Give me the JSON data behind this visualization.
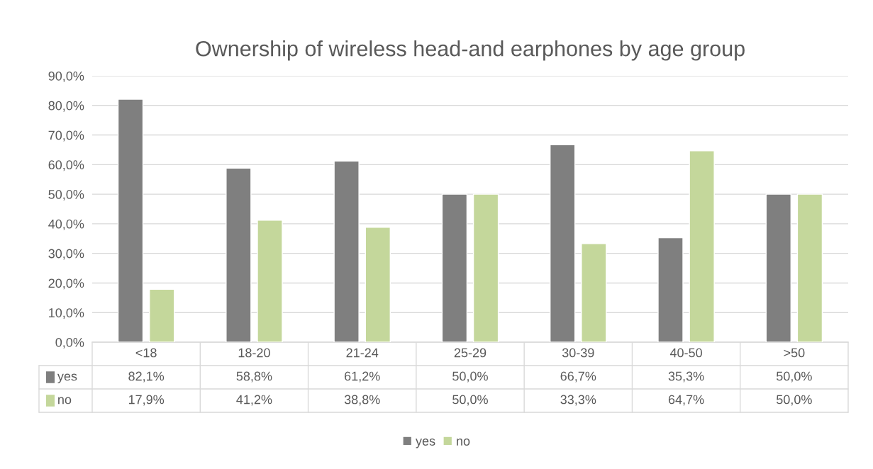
{
  "chart_data": {
    "type": "bar",
    "title": "Ownership of wireless head-and earphones by age group",
    "categories": [
      "<18",
      "18-20",
      "21-24",
      "25-29",
      "30-39",
      "40-50",
      ">50"
    ],
    "series": [
      {
        "name": "yes",
        "color": "#7f7f7f",
        "values": [
          82.1,
          58.8,
          61.2,
          50.0,
          66.7,
          35.3,
          50.0
        ],
        "value_labels": [
          "82,1%",
          "58,8%",
          "61,2%",
          "50,0%",
          "66,7%",
          "35,3%",
          "50,0%"
        ]
      },
      {
        "name": "no",
        "color": "#c4d79b",
        "values": [
          17.9,
          41.2,
          38.8,
          50.0,
          33.3,
          64.7,
          50.0
        ],
        "value_labels": [
          "17,9%",
          "41,2%",
          "38,8%",
          "50,0%",
          "33,3%",
          "64,7%",
          "50,0%"
        ]
      }
    ],
    "ylim": [
      0,
      90
    ],
    "yticks": [
      {
        "value": 0,
        "label": "0,0%"
      },
      {
        "value": 10,
        "label": "10,0%"
      },
      {
        "value": 20,
        "label": "20,0%"
      },
      {
        "value": 30,
        "label": "30,0%"
      },
      {
        "value": 40,
        "label": "40,0%"
      },
      {
        "value": 50,
        "label": "50,0%"
      },
      {
        "value": 60,
        "label": "60,0%"
      },
      {
        "value": 70,
        "label": "70,0%"
      },
      {
        "value": 80,
        "label": "80,0%"
      },
      {
        "value": 90,
        "label": "90,0%"
      }
    ],
    "grid": "y",
    "legend": "bottom"
  }
}
